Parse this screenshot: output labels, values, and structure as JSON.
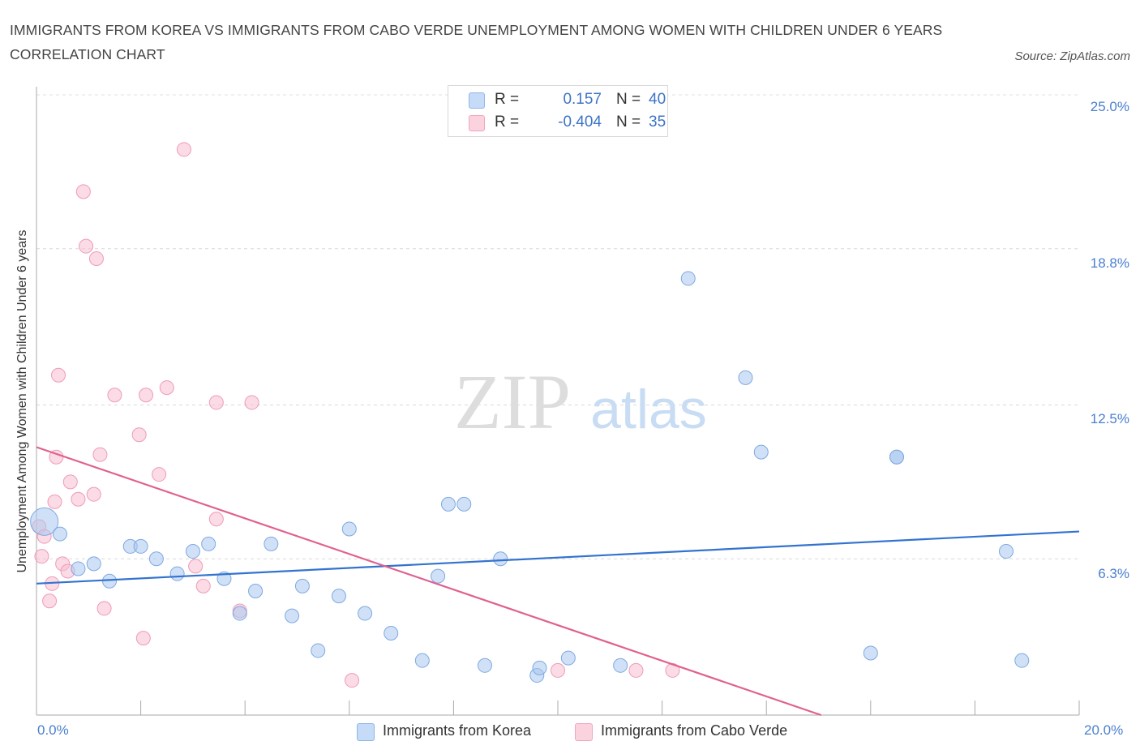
{
  "title": "IMMIGRANTS FROM KOREA VS IMMIGRANTS FROM CABO VERDE UNEMPLOYMENT AMONG WOMEN WITH CHILDREN UNDER 6 YEARS CORRELATION CHART",
  "source": "Source: ZipAtlas.com",
  "watermark": {
    "zip": "ZIP",
    "atlas": "atlas"
  },
  "legend": {
    "korea": {
      "r_label": "R =",
      "r_value": "0.157",
      "n_label": "N =",
      "n_value": "40"
    },
    "caboverde": {
      "r_label": "R =",
      "r_value": "-0.404",
      "n_label": "N =",
      "n_value": "35"
    }
  },
  "chart_data": {
    "type": "scatter",
    "title": "IMMIGRANTS FROM KOREA VS IMMIGRANTS FROM CABO VERDE UNEMPLOYMENT AMONG WOMEN WITH CHILDREN UNDER 6 YEARS CORRELATION CHART",
    "xlabel": "",
    "ylabel": "Unemployment Among Women with Children Under 6 years",
    "xlim": [
      0,
      20
    ],
    "ylim": [
      0,
      25
    ],
    "x_tick_labels": [
      "0.0%",
      "20.0%"
    ],
    "y_ticks": [
      6.3,
      12.5,
      18.8,
      25.0
    ],
    "y_tick_labels": [
      "6.3%",
      "12.5%",
      "18.8%",
      "25.0%"
    ],
    "grid": "horizontal dashed",
    "legend_position": "bottom",
    "series": [
      {
        "name": "Immigrants from Korea",
        "color": "#9ec2ee",
        "trend_color": "#3373cf",
        "trend": {
          "x": [
            0,
            20
          ],
          "y": [
            5.3,
            7.4
          ]
        },
        "points": [
          {
            "x": 0.15,
            "y": 7.8,
            "big": true
          },
          {
            "x": 0.45,
            "y": 7.3
          },
          {
            "x": 0.8,
            "y": 5.9
          },
          {
            "x": 1.1,
            "y": 6.1
          },
          {
            "x": 1.4,
            "y": 5.4
          },
          {
            "x": 1.8,
            "y": 6.8
          },
          {
            "x": 2.0,
            "y": 6.8
          },
          {
            "x": 2.3,
            "y": 6.3
          },
          {
            "x": 2.7,
            "y": 5.7
          },
          {
            "x": 3.0,
            "y": 6.6
          },
          {
            "x": 3.3,
            "y": 6.9
          },
          {
            "x": 3.6,
            "y": 5.5
          },
          {
            "x": 3.9,
            "y": 4.1
          },
          {
            "x": 4.2,
            "y": 5.0
          },
          {
            "x": 4.5,
            "y": 6.9
          },
          {
            "x": 4.9,
            "y": 4.0
          },
          {
            "x": 5.1,
            "y": 5.2
          },
          {
            "x": 5.4,
            "y": 2.6
          },
          {
            "x": 5.8,
            "y": 4.8
          },
          {
            "x": 6.0,
            "y": 7.5
          },
          {
            "x": 6.3,
            "y": 4.1
          },
          {
            "x": 6.8,
            "y": 3.3
          },
          {
            "x": 7.4,
            "y": 2.2
          },
          {
            "x": 7.7,
            "y": 5.6
          },
          {
            "x": 7.9,
            "y": 8.5
          },
          {
            "x": 8.2,
            "y": 8.5
          },
          {
            "x": 8.6,
            "y": 2.0
          },
          {
            "x": 8.9,
            "y": 6.3
          },
          {
            "x": 9.6,
            "y": 1.6
          },
          {
            "x": 9.65,
            "y": 1.9
          },
          {
            "x": 10.2,
            "y": 2.3
          },
          {
            "x": 11.2,
            "y": 2.0
          },
          {
            "x": 12.5,
            "y": 17.6
          },
          {
            "x": 13.6,
            "y": 13.6
          },
          {
            "x": 13.9,
            "y": 10.6
          },
          {
            "x": 16.0,
            "y": 2.5
          },
          {
            "x": 16.5,
            "y": 10.4
          },
          {
            "x": 16.5,
            "y": 10.4
          },
          {
            "x": 18.6,
            "y": 6.6
          },
          {
            "x": 18.9,
            "y": 2.2
          }
        ]
      },
      {
        "name": "Immigrants from Cabo Verde",
        "color": "#f5b5c8",
        "trend_color": "#e0608e",
        "trend": {
          "x": [
            0,
            15.05
          ],
          "y": [
            10.8,
            0
          ]
        },
        "points": [
          {
            "x": 0.05,
            "y": 7.6
          },
          {
            "x": 0.1,
            "y": 6.4
          },
          {
            "x": 0.15,
            "y": 7.2
          },
          {
            "x": 0.25,
            "y": 4.6
          },
          {
            "x": 0.3,
            "y": 5.3
          },
          {
            "x": 0.35,
            "y": 8.6
          },
          {
            "x": 0.38,
            "y": 10.4
          },
          {
            "x": 0.42,
            "y": 13.7
          },
          {
            "x": 0.5,
            "y": 6.1
          },
          {
            "x": 0.6,
            "y": 5.8
          },
          {
            "x": 0.65,
            "y": 9.4
          },
          {
            "x": 0.8,
            "y": 8.7
          },
          {
            "x": 0.9,
            "y": 21.1
          },
          {
            "x": 0.95,
            "y": 18.9
          },
          {
            "x": 1.1,
            "y": 8.9
          },
          {
            "x": 1.15,
            "y": 18.4
          },
          {
            "x": 1.22,
            "y": 10.5
          },
          {
            "x": 1.3,
            "y": 4.3
          },
          {
            "x": 1.5,
            "y": 12.9
          },
          {
            "x": 1.97,
            "y": 11.3
          },
          {
            "x": 2.05,
            "y": 3.1
          },
          {
            "x": 2.1,
            "y": 12.9
          },
          {
            "x": 2.35,
            "y": 9.7
          },
          {
            "x": 2.5,
            "y": 13.2
          },
          {
            "x": 2.83,
            "y": 22.8
          },
          {
            "x": 3.05,
            "y": 6.0
          },
          {
            "x": 3.2,
            "y": 5.2
          },
          {
            "x": 3.45,
            "y": 7.9
          },
          {
            "x": 3.45,
            "y": 12.6
          },
          {
            "x": 3.9,
            "y": 4.2
          },
          {
            "x": 4.13,
            "y": 12.6
          },
          {
            "x": 6.05,
            "y": 1.4
          },
          {
            "x": 10.0,
            "y": 1.8
          },
          {
            "x": 11.5,
            "y": 1.8
          },
          {
            "x": 12.2,
            "y": 1.8
          }
        ]
      }
    ]
  }
}
